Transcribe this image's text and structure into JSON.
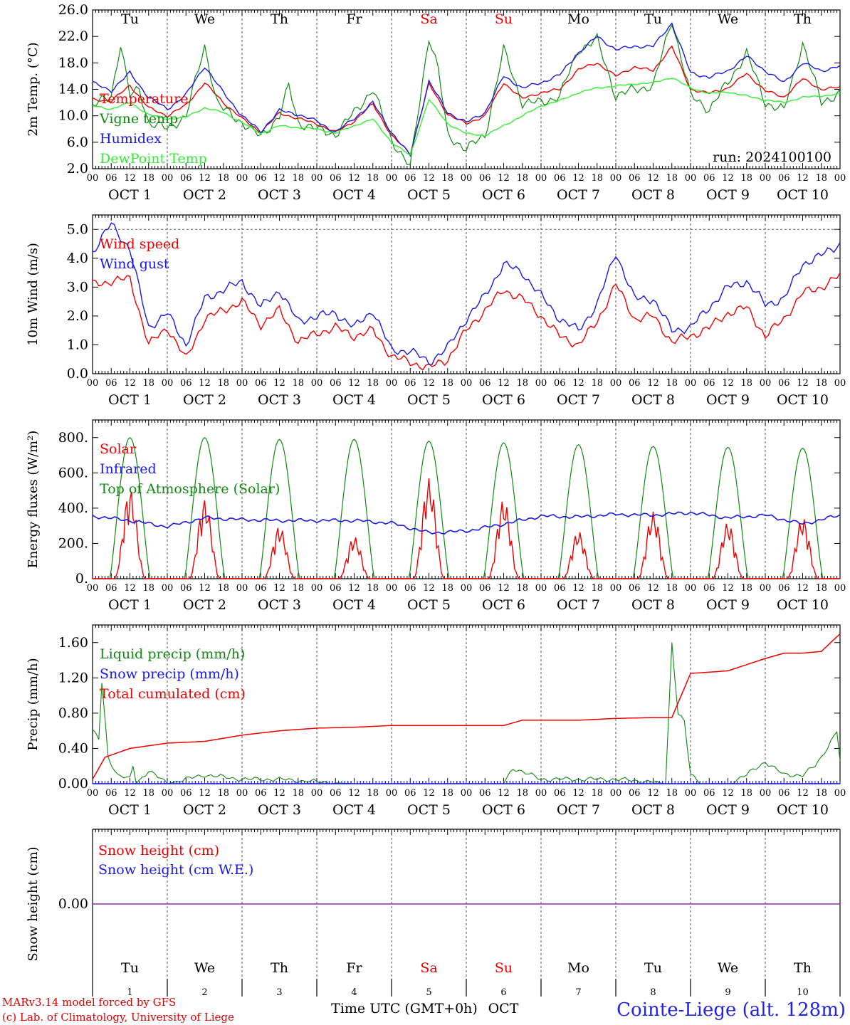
{
  "run_label": "run: 2024100100",
  "station_label": "Cointe-Liege (alt. 128m)",
  "credits": [
    "MARv3.14 model forced by GFS",
    "(c) Lab. of Climatology, University of Liege"
  ],
  "x_axis_title": "Time UTC (GMT+0h)",
  "month_label": "OCT",
  "hour_ticks": [
    "00",
    "06",
    "12",
    "18"
  ],
  "days": [
    {
      "dow": "Tu",
      "date": "OCT  1",
      "num": "1",
      "weekend": false
    },
    {
      "dow": "We",
      "date": "OCT  2",
      "num": "2",
      "weekend": false
    },
    {
      "dow": "Th",
      "date": "OCT  3",
      "num": "3",
      "weekend": false
    },
    {
      "dow": "Fr",
      "date": "OCT  4",
      "num": "4",
      "weekend": false
    },
    {
      "dow": "Sa",
      "date": "OCT  5",
      "num": "5",
      "weekend": true
    },
    {
      "dow": "Su",
      "date": "OCT  6",
      "num": "6",
      "weekend": true
    },
    {
      "dow": "Mo",
      "date": "OCT  7",
      "num": "7",
      "weekend": false
    },
    {
      "dow": "Tu",
      "date": "OCT  8",
      "num": "8",
      "weekend": false
    },
    {
      "dow": "We",
      "date": "OCT  9",
      "num": "9",
      "weekend": false
    },
    {
      "dow": "Th",
      "date": "OCT 10",
      "num": "10",
      "weekend": false
    }
  ],
  "colors": {
    "red": "#ee0000",
    "green": "#118811",
    "blue": "#1a1ae6",
    "lightgreen": "#33ee33",
    "purple": "#8833aa",
    "weekend": "#ee0000",
    "station": "#2222ee"
  },
  "chart_data": [
    {
      "type": "line",
      "title": "",
      "ylabel": "2m Temp. (°C)",
      "ylim": [
        2,
        26
      ],
      "ytick_labels": [
        "2.0",
        "6.0",
        "10.0",
        "14.0",
        "18.0",
        "22.0",
        "26.0"
      ],
      "ytick_values": [
        2,
        6,
        10,
        14,
        18,
        22,
        26
      ],
      "x_unit": "hours since 2024-10-01 00 UTC",
      "series": [
        {
          "name": "Temperature",
          "color": "red",
          "x": [
            0,
            6,
            12,
            18,
            24,
            30,
            36,
            42,
            48,
            54,
            60,
            66,
            72,
            78,
            84,
            90,
            96,
            102,
            108,
            114,
            120,
            126,
            132,
            138,
            144,
            150,
            156,
            162,
            168,
            174,
            180,
            186,
            192,
            198,
            204,
            210,
            216,
            222,
            228,
            234,
            240
          ],
          "y": [
            12.5,
            12.2,
            14.6,
            11.2,
            10.0,
            11.6,
            15.0,
            12.0,
            9.6,
            7.5,
            10.4,
            9.6,
            8.8,
            7.5,
            9.2,
            11.8,
            7.0,
            4.3,
            14.8,
            10.2,
            8.8,
            10.0,
            15.0,
            12.6,
            13.5,
            14.0,
            17.0,
            18.0,
            16.0,
            17.4,
            16.8,
            20.5,
            14.0,
            13.4,
            14.2,
            16.4,
            13.8,
            12.8,
            15.6,
            14.0,
            14.3
          ]
        },
        {
          "name": "Vigne temp",
          "color": "green",
          "x": [
            0,
            6,
            9,
            12,
            15,
            18,
            24,
            30,
            36,
            40,
            42,
            48,
            54,
            60,
            63,
            66,
            72,
            78,
            84,
            90,
            96,
            102,
            108,
            111,
            114,
            120,
            126,
            132,
            138,
            144,
            150,
            156,
            162,
            168,
            174,
            180,
            186,
            192,
            198,
            204,
            210,
            216,
            222,
            228,
            234,
            240
          ],
          "y": [
            11.5,
            13.0,
            21.0,
            13.0,
            14.0,
            9.0,
            8.0,
            10.0,
            20.5,
            12.0,
            11.0,
            9.0,
            6.8,
            10.0,
            14.5,
            9.0,
            8.0,
            7.2,
            10.5,
            14.0,
            6.4,
            2.2,
            22.0,
            17.0,
            7.0,
            5.0,
            7.0,
            20.0,
            12.0,
            12.0,
            13.0,
            20.0,
            21.5,
            13.0,
            14.0,
            14.5,
            24.5,
            13.0,
            11.0,
            15.0,
            19.5,
            12.0,
            10.8,
            21.0,
            12.0,
            13.5
          ]
        },
        {
          "name": "Humidex",
          "color": "blue",
          "x": [
            0,
            6,
            12,
            18,
            24,
            30,
            36,
            42,
            48,
            54,
            60,
            66,
            72,
            78,
            84,
            90,
            96,
            102,
            108,
            114,
            120,
            126,
            132,
            138,
            144,
            150,
            156,
            162,
            168,
            174,
            180,
            186,
            192,
            198,
            204,
            210,
            216,
            222,
            228,
            234,
            240
          ],
          "y": [
            15.0,
            13.8,
            16.5,
            12.8,
            11.0,
            13.2,
            17.5,
            13.5,
            10.0,
            7.6,
            10.8,
            10.2,
            9.2,
            7.5,
            9.6,
            12.0,
            7.5,
            4.0,
            15.2,
            10.5,
            9.0,
            10.5,
            16.0,
            14.2,
            15.0,
            16.2,
            19.5,
            22.0,
            20.0,
            20.5,
            20.5,
            24.0,
            16.5,
            15.8,
            16.8,
            19.0,
            16.8,
            15.0,
            18.0,
            16.8,
            17.5
          ]
        },
        {
          "name": "DewPoint Temp",
          "color": "lightgreen",
          "x": [
            0,
            6,
            12,
            18,
            24,
            30,
            36,
            42,
            48,
            54,
            60,
            66,
            72,
            78,
            84,
            90,
            96,
            102,
            108,
            114,
            120,
            126,
            132,
            138,
            144,
            150,
            156,
            162,
            168,
            174,
            180,
            186,
            192,
            198,
            204,
            210,
            216,
            222,
            228,
            234,
            240
          ],
          "y": [
            11.5,
            11.0,
            12.0,
            10.2,
            9.5,
            9.8,
            11.2,
            10.5,
            9.0,
            7.3,
            8.5,
            8.2,
            8.0,
            7.4,
            8.5,
            9.5,
            6.0,
            4.0,
            12.5,
            8.8,
            7.3,
            7.0,
            8.5,
            10.0,
            11.5,
            12.3,
            13.5,
            14.2,
            14.5,
            14.8,
            15.0,
            15.8,
            14.2,
            13.4,
            13.6,
            13.0,
            12.4,
            12.0,
            12.8,
            13.0,
            13.3
          ]
        }
      ]
    },
    {
      "type": "line",
      "title": "",
      "ylabel": "10m Wind (m/s)",
      "ylim": [
        0,
        5.5
      ],
      "ytick_labels": [
        "0.0",
        "1.0",
        "2.0",
        "3.0",
        "4.0",
        "5.0"
      ],
      "ytick_values": [
        0,
        1,
        2,
        3,
        4,
        5
      ],
      "dashed_reference": 5.0,
      "series": [
        {
          "name": "Wind speed",
          "color": "red",
          "x": [
            0,
            6,
            12,
            18,
            24,
            30,
            36,
            42,
            48,
            54,
            60,
            66,
            72,
            78,
            84,
            90,
            96,
            102,
            108,
            114,
            120,
            126,
            132,
            138,
            144,
            150,
            156,
            162,
            168,
            174,
            180,
            186,
            192,
            198,
            204,
            210,
            216,
            222,
            228,
            234,
            240
          ],
          "y": [
            3.1,
            3.2,
            3.3,
            1.0,
            1.6,
            0.5,
            1.9,
            2.2,
            2.5,
            1.7,
            2.2,
            1.1,
            1.4,
            1.6,
            1.3,
            1.5,
            0.6,
            0.4,
            0.2,
            0.5,
            1.5,
            2.2,
            2.9,
            2.6,
            2.0,
            1.3,
            1.0,
            1.8,
            3.1,
            1.9,
            2.0,
            1.1,
            1.3,
            1.6,
            2.1,
            2.3,
            1.3,
            1.9,
            2.8,
            3.0,
            3.4
          ]
        },
        {
          "name": "Wind gust",
          "color": "blue",
          "x": [
            0,
            6,
            12,
            18,
            24,
            30,
            36,
            42,
            48,
            54,
            60,
            66,
            72,
            78,
            84,
            90,
            96,
            102,
            108,
            114,
            120,
            126,
            132,
            138,
            144,
            150,
            156,
            162,
            168,
            174,
            180,
            186,
            192,
            198,
            204,
            210,
            216,
            222,
            228,
            234,
            240
          ],
          "y": [
            4.2,
            5.2,
            4.3,
            1.6,
            2.1,
            1.0,
            2.6,
            2.9,
            3.2,
            2.3,
            2.9,
            1.8,
            2.0,
            2.1,
            1.6,
            2.2,
            0.8,
            0.8,
            0.4,
            0.9,
            1.9,
            2.7,
            3.8,
            3.5,
            2.7,
            1.9,
            1.5,
            2.4,
            4.2,
            2.6,
            2.6,
            1.5,
            1.6,
            2.3,
            3.0,
            3.2,
            2.4,
            2.6,
            3.8,
            4.1,
            4.5
          ]
        }
      ]
    },
    {
      "type": "line",
      "title": "",
      "ylabel": "Energy fluxes (W/m²)",
      "ylim": [
        0,
        900
      ],
      "ytick_labels": [
        "0.",
        "200.",
        "400.",
        "600.",
        "800."
      ],
      "ytick_values": [
        0,
        200,
        400,
        600,
        800
      ],
      "series": [
        {
          "name": "Solar",
          "color": "red",
          "daily_peak": [
            510,
            450,
            300,
            240,
            570,
            450,
            270,
            380,
            320,
            350
          ]
        },
        {
          "name": "Infrared",
          "color": "blue",
          "x": [
            0,
            12,
            24,
            36,
            48,
            60,
            72,
            84,
            96,
            108,
            120,
            132,
            144,
            156,
            168,
            180,
            192,
            204,
            216,
            228,
            240
          ],
          "y": [
            355,
            330,
            295,
            345,
            335,
            330,
            330,
            330,
            315,
            260,
            270,
            310,
            355,
            350,
            365,
            360,
            375,
            345,
            360,
            310,
            360
          ]
        },
        {
          "name": "Top of Atmosphere (Solar)",
          "color": "green",
          "daily_peak": [
            800,
            800,
            790,
            790,
            780,
            770,
            760,
            750,
            745,
            740
          ]
        }
      ]
    },
    {
      "type": "line",
      "title": "",
      "ylabel": "Precip (mm/h)",
      "ylim": [
        0,
        1.8
      ],
      "ytick_labels": [
        "0.00",
        "0.40",
        "0.80",
        "1.20",
        "1.60"
      ],
      "ytick_values": [
        0,
        0.4,
        0.8,
        1.2,
        1.6
      ],
      "series": [
        {
          "name": "Liquid precip (mm/h)",
          "color": "green",
          "x": [
            0,
            2,
            3,
            5,
            8,
            12,
            13,
            14,
            18,
            24,
            36,
            48,
            60,
            72,
            84,
            96,
            108,
            120,
            132,
            135,
            144,
            168,
            180,
            184,
            186,
            188,
            190,
            192,
            196,
            204,
            210,
            216,
            222,
            228,
            232,
            234,
            239,
            240
          ],
          "y": [
            0.6,
            0.5,
            1.15,
            0.3,
            0.1,
            0.05,
            0.2,
            0.0,
            0.15,
            0.0,
            0.1,
            0.05,
            0.05,
            0.02,
            0.0,
            0.0,
            0.0,
            0.0,
            0.0,
            0.18,
            0.05,
            0.05,
            0.02,
            0.0,
            1.6,
            0.8,
            0.7,
            0.1,
            0.0,
            0.0,
            0.1,
            0.25,
            0.1,
            0.1,
            0.2,
            0.3,
            0.6,
            0.25
          ]
        },
        {
          "name": "Snow precip (mm/h)",
          "color": "blue",
          "x": [
            0,
            240
          ],
          "y": [
            0,
            0
          ]
        },
        {
          "name": "Total cumulated (cm)",
          "color": "red",
          "x": [
            0,
            4,
            12,
            24,
            36,
            48,
            60,
            72,
            84,
            96,
            108,
            120,
            132,
            138,
            144,
            156,
            168,
            180,
            186,
            192,
            204,
            216,
            222,
            228,
            234,
            240
          ],
          "y": [
            0.05,
            0.3,
            0.4,
            0.46,
            0.48,
            0.55,
            0.6,
            0.63,
            0.64,
            0.66,
            0.66,
            0.66,
            0.66,
            0.72,
            0.72,
            0.72,
            0.74,
            0.75,
            0.75,
            1.25,
            1.28,
            1.42,
            1.48,
            1.48,
            1.5,
            1.7
          ]
        }
      ]
    },
    {
      "type": "line",
      "title": "",
      "ylabel": "Snow height (cm)",
      "ytick_labels": [
        "0.00"
      ],
      "ytick_values": [
        0
      ],
      "series": [
        {
          "name": "Snow height (cm)",
          "color": "red",
          "x": [
            0,
            240
          ],
          "y": [
            0,
            0
          ]
        },
        {
          "name": "Snow height (cm W.E.)",
          "color": "blue",
          "x": [
            0,
            240
          ],
          "y": [
            0,
            0
          ]
        }
      ]
    }
  ]
}
